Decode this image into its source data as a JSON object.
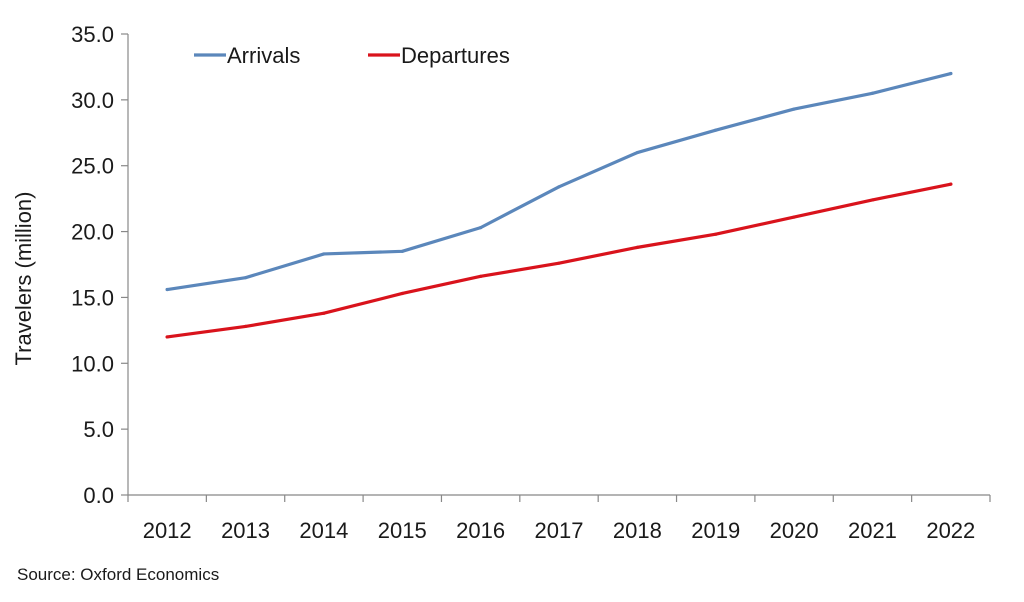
{
  "chart_data": {
    "type": "line",
    "title": "",
    "xlabel": "",
    "ylabel": "Travelers (million)",
    "categories": [
      "2012",
      "2013",
      "2014",
      "2015",
      "2016",
      "2017",
      "2018",
      "2019",
      "2020",
      "2021",
      "2022"
    ],
    "ylim": [
      0,
      35
    ],
    "yticks": [
      "0.0",
      "5.0",
      "10.0",
      "15.0",
      "20.0",
      "25.0",
      "30.0",
      "35.0"
    ],
    "grid": false,
    "legend_position": "top-left",
    "series": [
      {
        "name": "Arrivals",
        "color": "#5b87bb",
        "values": [
          15.6,
          16.5,
          18.3,
          18.5,
          20.3,
          23.4,
          26.0,
          27.7,
          29.3,
          30.5,
          32.0
        ]
      },
      {
        "name": "Departures",
        "color": "#d9131c",
        "values": [
          12.0,
          12.8,
          13.8,
          15.3,
          16.6,
          17.6,
          18.8,
          19.8,
          21.1,
          22.4,
          23.6
        ]
      }
    ]
  },
  "source": "Source: Oxford Economics"
}
